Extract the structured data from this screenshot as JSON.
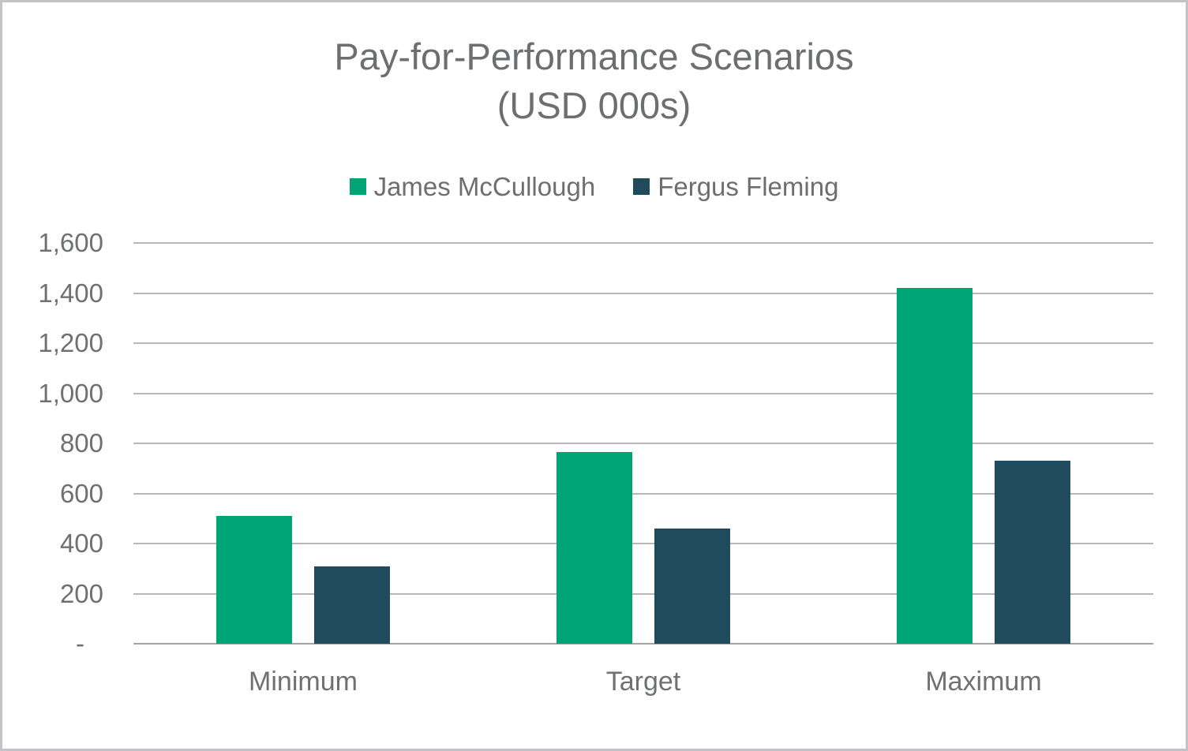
{
  "chart": {
    "title_line1": "Pay-for-Performance Scenarios",
    "title_line2": "(USD 000s)"
  },
  "chart_data": {
    "type": "bar",
    "title": "Pay-for-Performance Scenarios",
    "subtitle": "(USD 000s)",
    "categories": [
      "Minimum",
      "Target",
      "Maximum"
    ],
    "series": [
      {
        "name": "James McCullough",
        "color": "#00a577",
        "values": [
          510,
          765,
          1420
        ]
      },
      {
        "name": "Fergus Fleming",
        "color": "#1f4b5c",
        "values": [
          310,
          460,
          730
        ]
      }
    ],
    "ylim": [
      0,
      1600
    ],
    "ytick_step": 200,
    "yticks": [
      {
        "value": 1600,
        "label": "1,600"
      },
      {
        "value": 1400,
        "label": "1,400"
      },
      {
        "value": 1200,
        "label": "1,200"
      },
      {
        "value": 1000,
        "label": "1,000"
      },
      {
        "value": 800,
        "label": "800"
      },
      {
        "value": 600,
        "label": "600"
      },
      {
        "value": 400,
        "label": "400"
      },
      {
        "value": 200,
        "label": "200"
      },
      {
        "value": 0,
        "label": "-"
      }
    ],
    "grid": true,
    "legend_position": "top-center"
  },
  "style": {
    "text_color": "#6c6e71",
    "gridline_color": "#b6b6bc",
    "axis_line_color": "#a2a2a8",
    "background_color": "#ffffff",
    "border_color": "#c4c4c8"
  }
}
